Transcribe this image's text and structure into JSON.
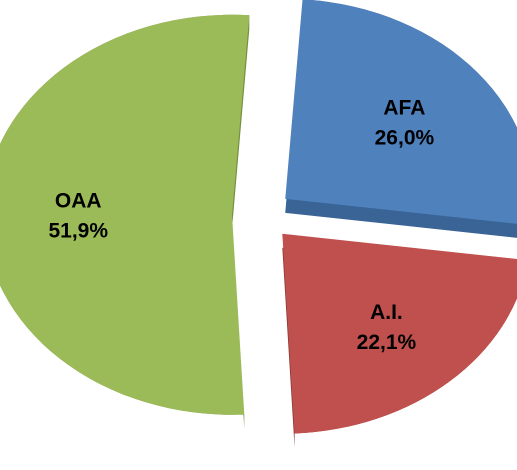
{
  "chart_data": {
    "type": "pie",
    "style": "exploded-3d",
    "slices": [
      {
        "name": "AFA",
        "value": 26.0,
        "label": "26,0%",
        "color": "#4F81BD",
        "side_color": "#3A6496"
      },
      {
        "name": "A.I.",
        "value": 22.1,
        "label": "22,1%",
        "color": "#C0504D",
        "side_color": "#8E3B39"
      },
      {
        "name": "OAA",
        "value": 51.9,
        "label": "51,9%",
        "color": "#9BBB59",
        "side_color": "#76903F"
      }
    ],
    "start_angle_deg": 4,
    "legend": "none"
  }
}
